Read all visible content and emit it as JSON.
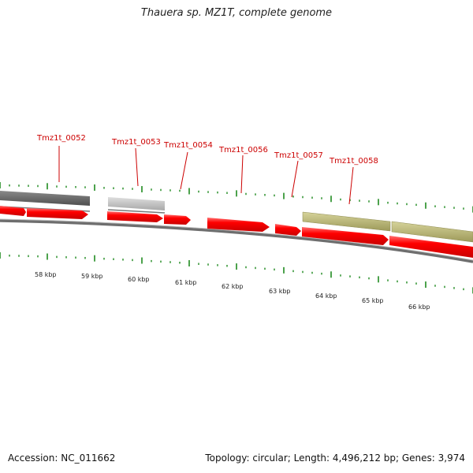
{
  "title": "Thauera sp. MZ1T, complete genome",
  "footer": {
    "accession": "Accession: NC_011662",
    "stats": "Topology: circular; Length: 4,496,212 bp; Genes: 3,974"
  },
  "colors": {
    "forward_gene": "#ff0000",
    "dark_feature": "#5f5f5f",
    "light_feature": "#c2c2c2",
    "olive_feature": "#c3c079",
    "backbone": "#6e6e6e",
    "tick": "#1f8a1f",
    "label": "#cc0000"
  },
  "genome_map": {
    "kbp_labels": [
      "58 kbp",
      "59 kbp",
      "60 kbp",
      "61 kbp",
      "62 kbp",
      "63 kbp",
      "64 kbp",
      "65 kbp",
      "66 kbp"
    ],
    "gene_labels": [
      "Tmz1t_0052",
      "Tmz1t_0053",
      "Tmz1t_0054",
      "Tmz1t_0056",
      "Tmz1t_0057",
      "Tmz1t_0058"
    ]
  }
}
